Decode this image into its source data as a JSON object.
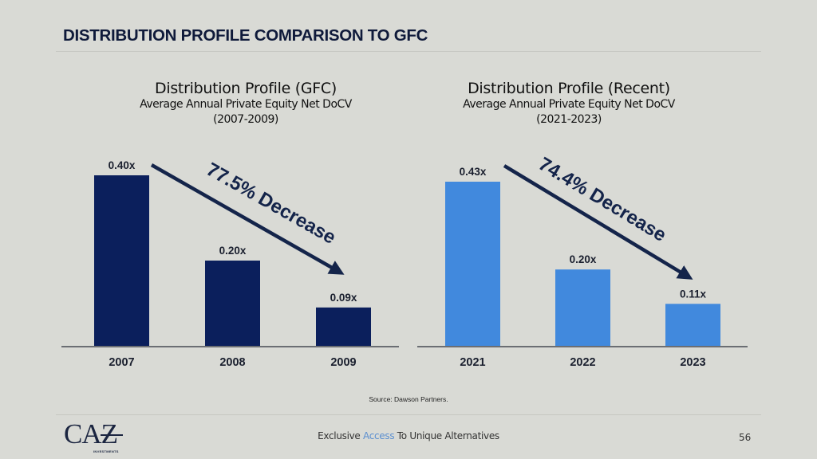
{
  "slide": {
    "title": "DISTRIBUTION PROFILE COMPARISON TO GFC",
    "source": "Source: Dawson Partners.",
    "footer": {
      "tagline_before": "Exclusive ",
      "tagline_accent": "Access",
      "tagline_after": " To Unique Alternatives",
      "page_number": "56",
      "logo_text": "CAZ",
      "logo_subtext": "INVESTMENTS"
    }
  },
  "colors": {
    "background": "#d9dad5",
    "title": "#0f1a3a",
    "gfc_bars": "#0b1f5c",
    "recent_bars": "#4189dd",
    "arrow": "#14244a",
    "axis": "#6b6e73",
    "accent": "#5b8fd0"
  },
  "chart_data": [
    {
      "type": "bar",
      "title": "Distribution Profile (GFC)",
      "subtitle": "Average Annual Private Equity Net DoCV",
      "period": "(2007-2009)",
      "categories": [
        "2007",
        "2008",
        "2009"
      ],
      "values": [
        0.4,
        0.2,
        0.09
      ],
      "data_labels": [
        "0.40x",
        "0.20x",
        "0.09x"
      ],
      "ylim": [
        0,
        0.4
      ],
      "grid": false,
      "legend": "none",
      "annotation": "77.5% Decrease"
    },
    {
      "type": "bar",
      "title": "Distribution Profile (Recent)",
      "subtitle": "Average Annual Private Equity Net DoCV",
      "period": "(2021-2023)",
      "categories": [
        "2021",
        "2022",
        "2023"
      ],
      "values": [
        0.43,
        0.2,
        0.11
      ],
      "data_labels": [
        "0.43x",
        "0.20x",
        "0.11x"
      ],
      "ylim": [
        0,
        0.43
      ],
      "grid": false,
      "legend": "none",
      "annotation": "74.4% Decrease"
    }
  ]
}
